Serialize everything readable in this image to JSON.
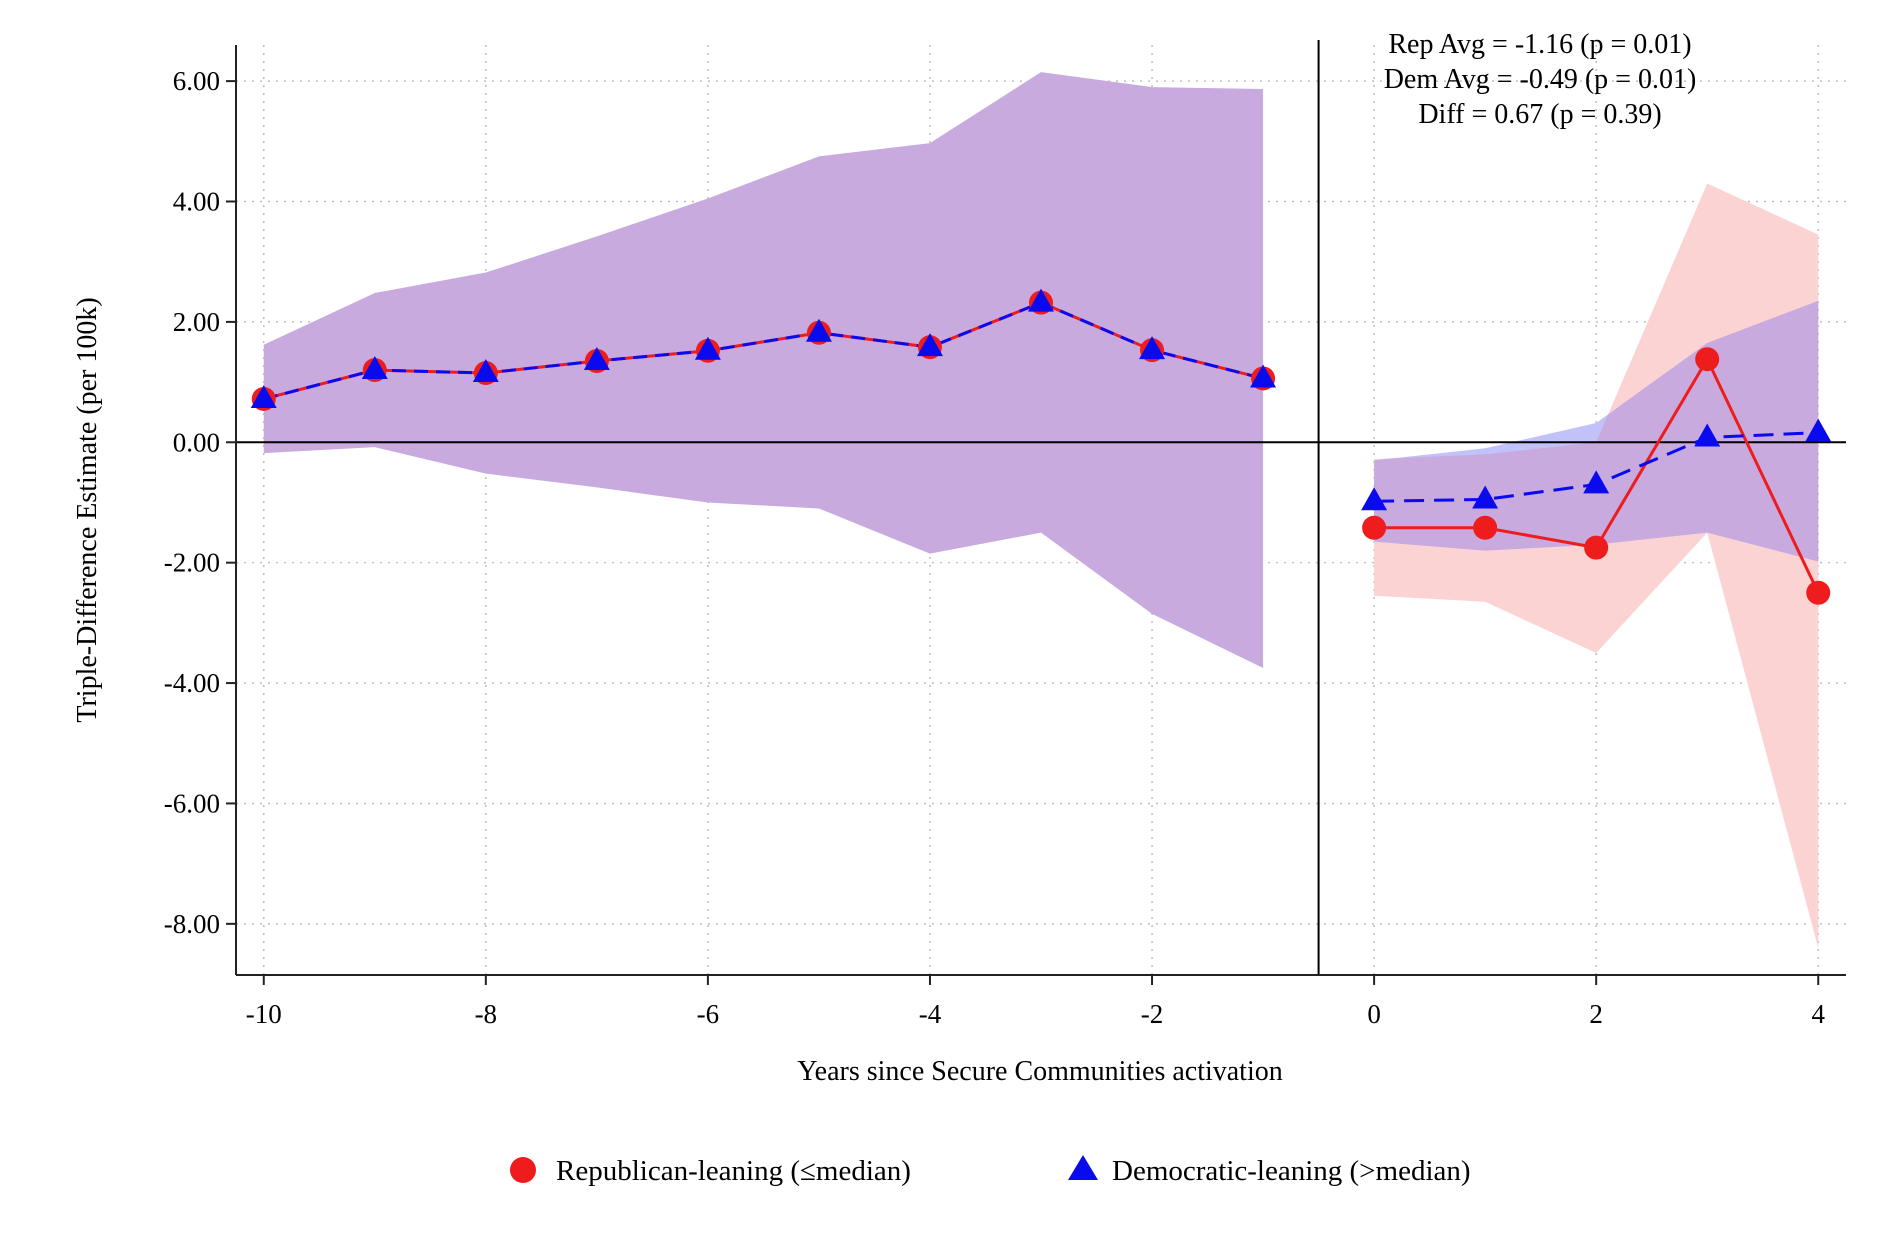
{
  "chart_data": {
    "type": "line",
    "xlabel": "Years since Secure Communities activation",
    "ylabel": "Triple-Difference Estimate (per 100k)",
    "xlim": [
      -10.25,
      4.25
    ],
    "ylim": [
      -8.85,
      6.6
    ],
    "x_ticks": [
      -10,
      -8,
      -6,
      -4,
      -2,
      0,
      2,
      4
    ],
    "x_tick_labels": [
      "-10",
      "-8",
      "-6",
      "-4",
      "-2",
      "0",
      "2",
      "4"
    ],
    "y_ticks": [
      6,
      4,
      2,
      0,
      -2,
      -4,
      -6,
      -8
    ],
    "y_tick_labels": [
      "6.00",
      "4.00",
      "2.00",
      "0.00",
      "-2.00",
      "-4.00",
      "-6.00",
      "-8.00"
    ],
    "grid": true,
    "reference_lines": {
      "horizontal_y": 0,
      "vertical_x": -0.5
    },
    "annotations": [
      "Rep Avg = -1.16 (p = 0.01)",
      "Dem Avg = -0.49 (p = 0.01)",
      "Diff = 0.67 (p = 0.39)"
    ],
    "legend_position": "bottom",
    "series": [
      {
        "name": "Republican-leaning (≤median)",
        "color": "#ee1c1c",
        "marker": "circle",
        "pre": {
          "x": [
            -10,
            -9,
            -8,
            -7,
            -6,
            -5,
            -4,
            -3,
            -2,
            -1
          ],
          "y": [
            0.72,
            1.2,
            1.15,
            1.35,
            1.52,
            1.82,
            1.58,
            2.32,
            1.53,
            1.06
          ],
          "ci_lower": [
            -0.18,
            -0.08,
            -0.52,
            -0.75,
            -1.0,
            -1.1,
            -1.85,
            -1.5,
            -2.85,
            -3.75
          ],
          "ci_upper": [
            1.62,
            2.48,
            2.82,
            3.42,
            4.05,
            4.75,
            4.97,
            6.15,
            5.9,
            5.87
          ]
        },
        "post": {
          "x": [
            0,
            1,
            2,
            3,
            4
          ],
          "y": [
            -1.42,
            -1.42,
            -1.75,
            1.38,
            -2.5
          ],
          "ci_lower": [
            -2.55,
            -2.65,
            -3.5,
            -1.5,
            -8.4
          ],
          "ci_upper": [
            -0.28,
            -0.2,
            0.0,
            4.3,
            3.45
          ]
        }
      },
      {
        "name": "Democratic-leaning (>median)",
        "color": "#0a0aee",
        "marker": "triangle",
        "pre": {
          "x": [
            -10,
            -9,
            -8,
            -7,
            -6,
            -5,
            -4,
            -3,
            -2,
            -1
          ],
          "y": [
            0.72,
            1.2,
            1.15,
            1.35,
            1.52,
            1.82,
            1.58,
            2.32,
            1.53,
            1.06
          ],
          "ci_lower": [
            -0.18,
            -0.08,
            -0.52,
            -0.75,
            -1.0,
            -1.1,
            -1.85,
            -1.5,
            -2.85,
            -3.75
          ],
          "ci_upper": [
            1.62,
            2.48,
            2.82,
            3.42,
            4.05,
            4.75,
            4.97,
            6.15,
            5.9,
            5.87
          ]
        },
        "post": {
          "x": [
            0,
            1,
            2,
            3,
            4
          ],
          "y": [
            -0.98,
            -0.95,
            -0.7,
            0.08,
            0.16
          ],
          "ci_lower": [
            -1.65,
            -1.8,
            -1.7,
            -1.5,
            -1.98
          ],
          "ci_upper": [
            -0.3,
            -0.1,
            0.32,
            1.65,
            2.35
          ]
        }
      }
    ],
    "colors": {
      "overlap_band": "#c8aadf",
      "rep_band": "#fcd3d3",
      "dem_band": "#c2c2fb",
      "reference": "#000000",
      "grid": "#bfbfbf"
    }
  }
}
